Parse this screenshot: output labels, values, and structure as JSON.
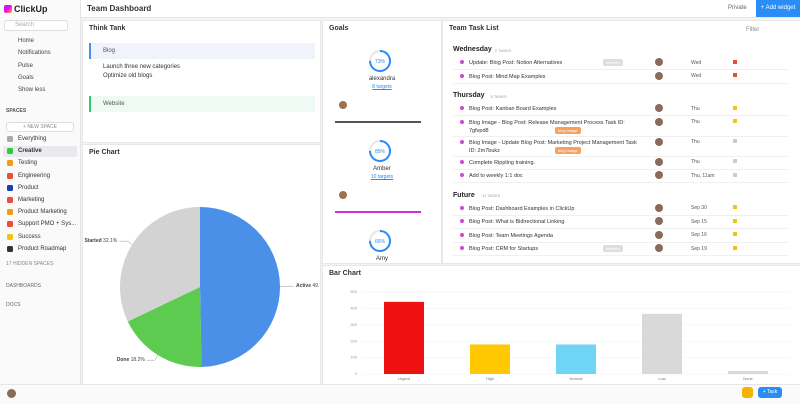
{
  "app": {
    "logo": "ClickUp",
    "search": "Search",
    "nav": [
      "Home",
      "Notifications",
      "Pulse",
      "Goals",
      "Show less"
    ],
    "spaces_heading": "SPACES",
    "new_space": "+ NEW SPACE",
    "spaces": [
      {
        "name": "Everything",
        "color": "#aaaaaa"
      },
      {
        "name": "Creative",
        "color": "#2ecc40"
      },
      {
        "name": "Testing",
        "color": "#f39c12"
      },
      {
        "name": "Engineering",
        "color": "#e74c3c"
      },
      {
        "name": "Product",
        "color": "#1a3fb0"
      },
      {
        "name": "Marketing",
        "color": "#e74c3c"
      },
      {
        "name": "Product Marketing",
        "color": "#f39c12"
      },
      {
        "name": "Support PMO + Sys...",
        "color": "#e74c3c"
      },
      {
        "name": "Success",
        "color": "#f1c40f"
      },
      {
        "name": "Product Roadmap",
        "color": "#333333"
      }
    ],
    "hidden_spaces": "17 HIDDEN SPACES",
    "dashboards": "DASHBOARDS",
    "docs": "DOCS"
  },
  "header": {
    "title": "Team Dashboard",
    "privacy": "Private",
    "add_widget": "+ Add widget"
  },
  "think_tank": {
    "title": "Think Tank",
    "blog": "Blog",
    "bullets": [
      "Launch three new categories",
      "Optimize old blogs"
    ],
    "website": "Website"
  },
  "goals": {
    "title": "Goals",
    "items": [
      {
        "percent": "73%",
        "owner": "alexandra",
        "targets": "8 targets"
      },
      {
        "percent": "85%",
        "owner": "Amber",
        "targets": "10 targets"
      },
      {
        "percent": "66%",
        "owner": "Amy"
      }
    ]
  },
  "task_list": {
    "title": "Team Task List",
    "filter": "Filter",
    "groups": [
      {
        "name": "Wednesday",
        "count": "2 TASKS",
        "tasks": [
          {
            "name": "Update: Blog Post: Notion Alternatives",
            "tag": "website",
            "date": "Wed",
            "flag": "#e74c3c"
          },
          {
            "name": "Blog Post: Mind Map Examples",
            "date": "Wed",
            "flag": "#e74c3c"
          }
        ]
      },
      {
        "name": "Thursday",
        "count": "5 TASKS",
        "tasks": [
          {
            "name": "Blog Post: Kanban Board Examples",
            "date": "Thu",
            "flag": "#f1c40f"
          },
          {
            "name": "Blog Image - Blog Post: Release Management Process Task ID: 7gfvpd8",
            "tag": "blog image",
            "date": "Thu",
            "flag": "#f1c40f"
          },
          {
            "name": "Blog Image - Update Blog Post: Marketing Project Management Task ID: 2m7bukz",
            "tag": "blog image",
            "date": "Thu",
            "flag": "#cccccc"
          },
          {
            "name": "Complete Rippling training.",
            "date": "Thu",
            "flag": "#cccccc"
          },
          {
            "name": "Add to weekly 1:1 doc",
            "date": "Thu, 11am",
            "flag": "#cccccc"
          }
        ]
      },
      {
        "name": "Future",
        "count": "11 TASKS",
        "tasks": [
          {
            "name": "Blog Post: Dashboard Examples in ClickUp",
            "date": "Sep 30",
            "flag": "#f1c40f"
          },
          {
            "name": "Blog Post: What is Bidirectional Linking",
            "date": "Sep 15",
            "flag": "#f1c40f"
          },
          {
            "name": "Blog Post: Team Meetings Agenda",
            "date": "Sep 16",
            "flag": "#f1c40f"
          },
          {
            "name": "Blog Post: CRM for Startups",
            "tag": "website",
            "date": "Sep 19",
            "flag": "#f1c40f"
          }
        ]
      }
    ]
  },
  "task_button": "+ Task",
  "chart_data": [
    {
      "type": "pie",
      "title": "Pie Chart",
      "categories": [
        "Active",
        "Done",
        "Not Started"
      ],
      "values": [
        49.7,
        18.2,
        32.1
      ],
      "value_labels": [
        "49.7%",
        "18.2%",
        "32.1%"
      ],
      "colors": [
        "#4a90e8",
        "#5ccb4f",
        "#d3d3d3"
      ]
    },
    {
      "type": "bar",
      "title": "Bar Chart",
      "categories": [
        "Urgent",
        "High",
        "Normal",
        "Low",
        "None"
      ],
      "values": [
        440,
        180,
        180,
        367,
        18
      ],
      "colors": [
        "#ee1111",
        "#ffc800",
        "#6fd4f5",
        "#d9d9d9",
        "#d9d9d9"
      ],
      "ylim": [
        0,
        500
      ],
      "yticks": [
        0,
        100,
        200,
        300,
        400,
        500
      ],
      "grid": true
    }
  ]
}
